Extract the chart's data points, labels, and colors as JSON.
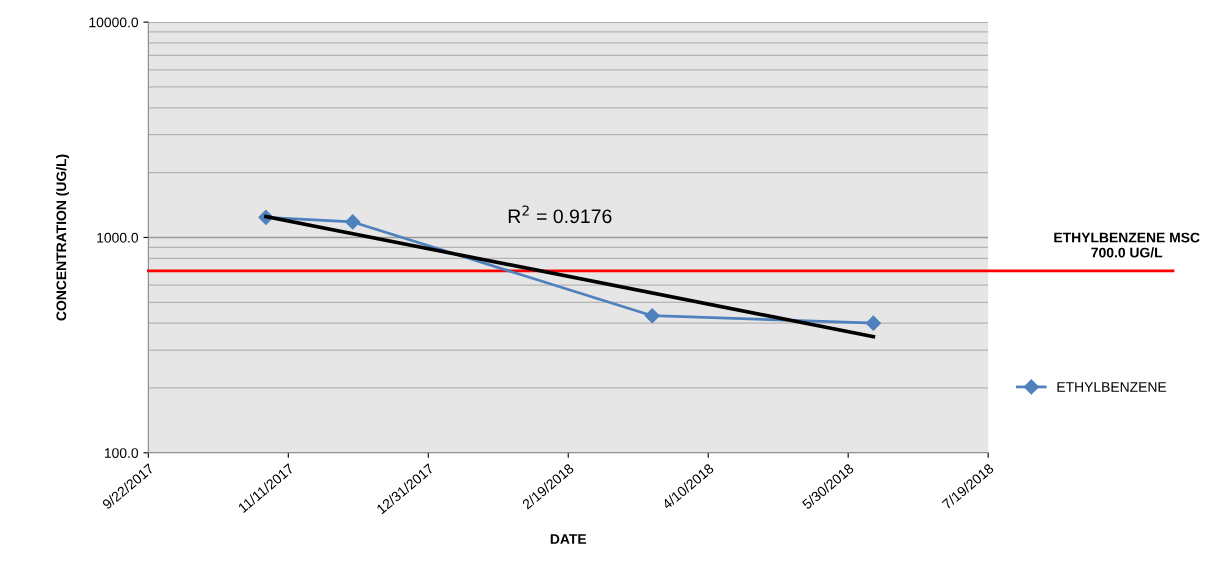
{
  "chart_data": {
    "type": "line",
    "xlabel": "DATE",
    "ylabel": "CONCENTRATION (UG/L)",
    "series": [
      {
        "name": "ETHYLBENZENE",
        "color": "#4f81bd",
        "x": [
          "2017-11-03",
          "2017-12-04",
          "2018-03-21",
          "2018-06-08"
        ],
        "values": [
          1240,
          1180,
          433,
          400
        ],
        "marker": "diamond"
      },
      {
        "type": "line",
        "color": "#000000",
        "x": [
          "2017-11-03",
          "2018-06-08"
        ],
        "values": [
          1250,
          346
        ],
        "marker": "none"
      }
    ],
    "log": "y",
    "ylim": [
      100,
      10000
    ],
    "yticks": [
      {
        "value": 100,
        "label": "100.0"
      },
      {
        "value": 1000,
        "label": "1000.0"
      },
      {
        "value": 10000,
        "label": "10000.0"
      }
    ],
    "xlim": [
      "2017-09-22",
      "2018-07-19"
    ],
    "xticks": [
      {
        "value": "2017-09-22",
        "label": "9/22/2017"
      },
      {
        "value": "2017-11-11",
        "label": "11/11/2017"
      },
      {
        "value": "2017-12-31",
        "label": "12/31/2017"
      },
      {
        "value": "2018-02-19",
        "label": "2/19/2018"
      },
      {
        "value": "2018-04-10",
        "label": "4/10/2018"
      },
      {
        "value": "2018-05-30",
        "label": "5/30/2018"
      },
      {
        "value": "2018-07-19",
        "label": "7/19/2018"
      }
    ],
    "ref_lines": [
      {
        "axis": "y",
        "value": 700,
        "label": "ETHYLBENZENE MSC\n700.0 UG/L",
        "color": "#ff0000"
      }
    ],
    "annotations": [
      "R$^{2}$ = 0.9176"
    ],
    "grid": "y",
    "legend": "right"
  }
}
